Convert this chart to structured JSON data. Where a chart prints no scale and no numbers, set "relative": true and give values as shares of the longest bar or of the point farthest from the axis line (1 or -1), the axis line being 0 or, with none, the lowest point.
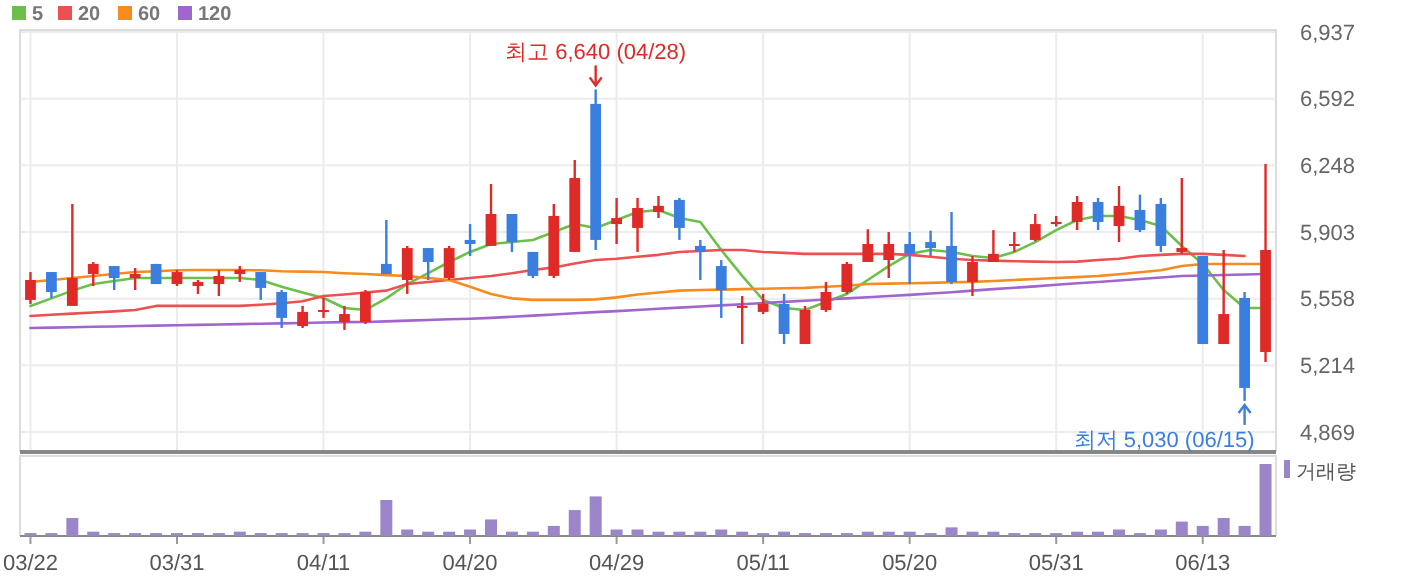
{
  "chart_data": [
    {
      "type": "candlestick",
      "ohlc": [
        [
          5552,
          5696,
          5531,
          5655
        ],
        [
          5696,
          5696,
          5562,
          5593
        ],
        [
          5521,
          6048,
          5521,
          5665
        ],
        [
          5686,
          5748,
          5624,
          5738
        ],
        [
          5727,
          5727,
          5603,
          5665
        ],
        [
          5665,
          5717,
          5603,
          5686
        ],
        [
          5738,
          5738,
          5634,
          5634
        ],
        [
          5634,
          5707,
          5624,
          5696
        ],
        [
          5624,
          5655,
          5583,
          5645
        ],
        [
          5634,
          5707,
          5572,
          5676
        ],
        [
          5686,
          5727,
          5645,
          5707
        ],
        [
          5696,
          5696,
          5552,
          5614
        ],
        [
          5593,
          5603,
          5407,
          5459
        ],
        [
          5417,
          5521,
          5407,
          5490
        ],
        [
          5490,
          5562,
          5459,
          5500
        ],
        [
          5438,
          5521,
          5397,
          5479
        ],
        [
          5438,
          5603,
          5428,
          5593
        ],
        [
          5738,
          5965,
          5686,
          5686
        ],
        [
          5655,
          5831,
          5583,
          5820
        ],
        [
          5820,
          5820,
          5655,
          5748
        ],
        [
          5665,
          5831,
          5655,
          5820
        ],
        [
          5862,
          5944,
          5779,
          5841
        ],
        [
          5831,
          6151,
          5831,
          5996
        ],
        [
          5996,
          5996,
          5800,
          5851
        ],
        [
          5800,
          5800,
          5665,
          5676
        ],
        [
          5676,
          6048,
          5665,
          5986
        ],
        [
          5800,
          6275,
          5800,
          6182
        ],
        [
          6565,
          6640,
          5810,
          5862
        ],
        [
          5944,
          6079,
          5841,
          5975
        ],
        [
          5924,
          6079,
          5800,
          6027
        ],
        [
          6006,
          6089,
          5975,
          6038
        ],
        [
          6069,
          6079,
          5862,
          5924
        ],
        [
          5831,
          5862,
          5655,
          5800
        ],
        [
          5727,
          5758,
          5459,
          5603
        ],
        [
          5517,
          5572,
          5324,
          5521
        ],
        [
          5490,
          5583,
          5479,
          5531
        ],
        [
          5531,
          5583,
          5324,
          5376
        ],
        [
          5324,
          5521,
          5324,
          5500
        ],
        [
          5500,
          5645,
          5490,
          5593
        ],
        [
          5593,
          5748,
          5583,
          5738
        ],
        [
          5748,
          5917,
          5748,
          5841
        ],
        [
          5758,
          5903,
          5665,
          5841
        ],
        [
          5841,
          5903,
          5634,
          5790
        ],
        [
          5851,
          5910,
          5779,
          5820
        ],
        [
          5831,
          6006,
          5634,
          5645
        ],
        [
          5645,
          5779,
          5572,
          5748
        ],
        [
          5748,
          5913,
          5748,
          5790
        ],
        [
          5831,
          5903,
          5800,
          5841
        ],
        [
          5862,
          5996,
          5855,
          5944
        ],
        [
          5944,
          5986,
          5931,
          5955
        ],
        [
          5955,
          6089,
          5913,
          6058
        ],
        [
          6058,
          6079,
          5913,
          5955
        ],
        [
          5934,
          6141,
          5851,
          6038
        ],
        [
          6017,
          6096,
          5903,
          5913
        ],
        [
          6048,
          6079,
          5800,
          5831
        ],
        [
          5800,
          6182,
          5790,
          5820
        ],
        [
          5779,
          5779,
          5324,
          5324
        ],
        [
          5324,
          5810,
          5324,
          5479
        ],
        [
          5562,
          5593,
          5030,
          5097
        ],
        [
          5283,
          6255,
          5231,
          5810
        ]
      ],
      "series": [
        {
          "name": "5",
          "type": "line",
          "color": "#6cc04a",
          "values": [
            5521,
            5560,
            5600,
            5634,
            5650,
            5665,
            5665,
            5665,
            5665,
            5665,
            5665,
            5655,
            5620,
            5590,
            5562,
            5510,
            5500,
            5560,
            5634,
            5690,
            5748,
            5800,
            5841,
            5851,
            5862,
            5903,
            5944,
            5924,
            5965,
            6006,
            6017,
            5975,
            5955,
            5810,
            5676,
            5552,
            5510,
            5500,
            5541,
            5583,
            5655,
            5727,
            5790,
            5810,
            5800,
            5779,
            5769,
            5800,
            5851,
            5913,
            5965,
            5986,
            5986,
            5965,
            5934,
            5831,
            5738,
            5603,
            5510,
            5510
          ]
        },
        {
          "name": "20",
          "type": "line",
          "color": "#ec5050",
          "values": [
            5469,
            5475,
            5481,
            5487,
            5493,
            5500,
            5521,
            5521,
            5521,
            5521,
            5521,
            5527,
            5535,
            5545,
            5572,
            5580,
            5590,
            5600,
            5634,
            5645,
            5655,
            5665,
            5676,
            5690,
            5707,
            5720,
            5740,
            5758,
            5765,
            5775,
            5785,
            5800,
            5805,
            5810,
            5810,
            5800,
            5795,
            5790,
            5790,
            5790,
            5790,
            5790,
            5785,
            5775,
            5765,
            5758,
            5755,
            5752,
            5750,
            5748,
            5750,
            5758,
            5765,
            5779,
            5785,
            5790,
            5790,
            5785,
            5779,
            null
          ]
        },
        {
          "name": "60",
          "type": "line",
          "color": "#f68b1f",
          "values": [
            5645,
            5655,
            5665,
            5676,
            5686,
            5696,
            5700,
            5705,
            5707,
            5707,
            5707,
            5705,
            5700,
            5698,
            5696,
            5690,
            5686,
            5680,
            5676,
            5665,
            5655,
            5620,
            5583,
            5560,
            5552,
            5552,
            5552,
            5555,
            5565,
            5580,
            5590,
            5600,
            5603,
            5605,
            5608,
            5610,
            5612,
            5614,
            5620,
            5625,
            5634,
            5636,
            5638,
            5640,
            5643,
            5645,
            5650,
            5655,
            5660,
            5665,
            5670,
            5676,
            5685,
            5695,
            5705,
            5727,
            5738,
            5738,
            5738,
            5738
          ]
        },
        {
          "name": "120",
          "type": "line",
          "color": "#a066cc",
          "values": [
            5407,
            5409,
            5411,
            5413,
            5415,
            5417,
            5419,
            5421,
            5423,
            5425,
            5427,
            5429,
            5431,
            5433,
            5435,
            5437,
            5438,
            5441,
            5445,
            5448,
            5452,
            5455,
            5459,
            5465,
            5471,
            5477,
            5483,
            5489,
            5494,
            5500,
            5506,
            5512,
            5518,
            5524,
            5530,
            5536,
            5542,
            5548,
            5554,
            5560,
            5566,
            5572,
            5578,
            5585,
            5592,
            5600,
            5608,
            5615,
            5622,
            5630,
            5638,
            5645,
            5652,
            5660,
            5668,
            5676,
            5678,
            5681,
            5683,
            5686
          ]
        }
      ],
      "ylim": [
        4766,
        6947
      ],
      "yticks": [
        {
          "value": 4869,
          "label": "4,869"
        },
        {
          "value": 5214,
          "label": "5,214"
        },
        {
          "value": 5558,
          "label": "5,558"
        },
        {
          "value": 5903,
          "label": "5,903"
        },
        {
          "value": 6248,
          "label": "6,248"
        },
        {
          "value": 6592,
          "label": "6,592"
        },
        {
          "value": 6937,
          "label": "6,937"
        }
      ],
      "grid": true,
      "legend": "top left",
      "tick_labels": "y",
      "annotations": [
        "최고 6,640 (04/28)",
        "최저 5,030 (06/15)"
      ]
    },
    {
      "type": "bar",
      "relative": true,
      "categories": [
        "03/22",
        null,
        null,
        null,
        null,
        null,
        null,
        "03/31",
        null,
        null,
        null,
        null,
        null,
        null,
        "04/11",
        null,
        null,
        null,
        null,
        null,
        null,
        "04/20",
        null,
        null,
        null,
        null,
        null,
        null,
        "04/29",
        null,
        null,
        null,
        null,
        null,
        null,
        "05/11",
        null,
        null,
        null,
        null,
        null,
        null,
        "05/20",
        null,
        null,
        null,
        null,
        null,
        null,
        "05/31",
        null,
        null,
        null,
        null,
        null,
        null,
        "06/13",
        null,
        null,
        null
      ],
      "series": [
        {
          "name": "거래량",
          "color": "#9b86c9",
          "values": [
            0.04,
            0.04,
            0.25,
            0.06,
            0.04,
            0.04,
            0.04,
            0.04,
            0.04,
            0.04,
            0.06,
            0.04,
            0.04,
            0.04,
            0.04,
            0.04,
            0.06,
            0.5,
            0.09,
            0.06,
            0.06,
            0.09,
            0.23,
            0.06,
            0.06,
            0.14,
            0.36,
            0.55,
            0.09,
            0.09,
            0.06,
            0.06,
            0.06,
            0.09,
            0.06,
            0.04,
            0.06,
            0.04,
            0.04,
            0.04,
            0.06,
            0.06,
            0.06,
            0.04,
            0.12,
            0.06,
            0.06,
            0.04,
            0.04,
            0.04,
            0.06,
            0.06,
            0.09,
            0.04,
            0.09,
            0.2,
            0.14,
            0.25,
            0.14,
            1
          ]
        }
      ],
      "tick_labels": "x",
      "legend": "top right"
    }
  ]
}
